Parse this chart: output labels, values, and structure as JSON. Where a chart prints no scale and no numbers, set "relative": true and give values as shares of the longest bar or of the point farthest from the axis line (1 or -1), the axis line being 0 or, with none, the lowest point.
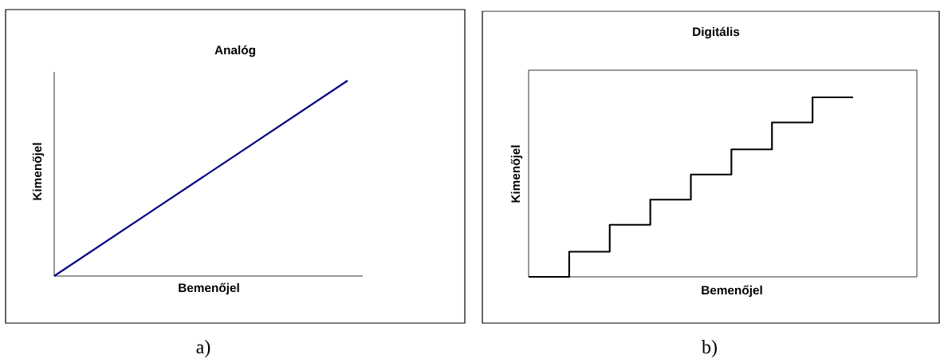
{
  "chart_data": [
    {
      "type": "line",
      "title": "Analóg",
      "xlabel": "Bemenőjel",
      "ylabel": "Kimenőjel",
      "relative": true,
      "categories": [
        null,
        null
      ],
      "values": [
        0,
        1
      ],
      "color": "#000080",
      "annotations": [
        "a)"
      ]
    },
    {
      "type": "step",
      "title": "Digitális",
      "xlabel": "Bemenőjel",
      "ylabel": "Kimenőjel",
      "relative": true,
      "categories": [
        null,
        null,
        null,
        null,
        null,
        null,
        null,
        null,
        null
      ],
      "values": [
        0,
        0.14,
        0.29,
        0.43,
        0.57,
        0.71,
        0.86,
        1,
        1
      ],
      "color": "#000000",
      "annotations": [
        "b)"
      ]
    }
  ]
}
